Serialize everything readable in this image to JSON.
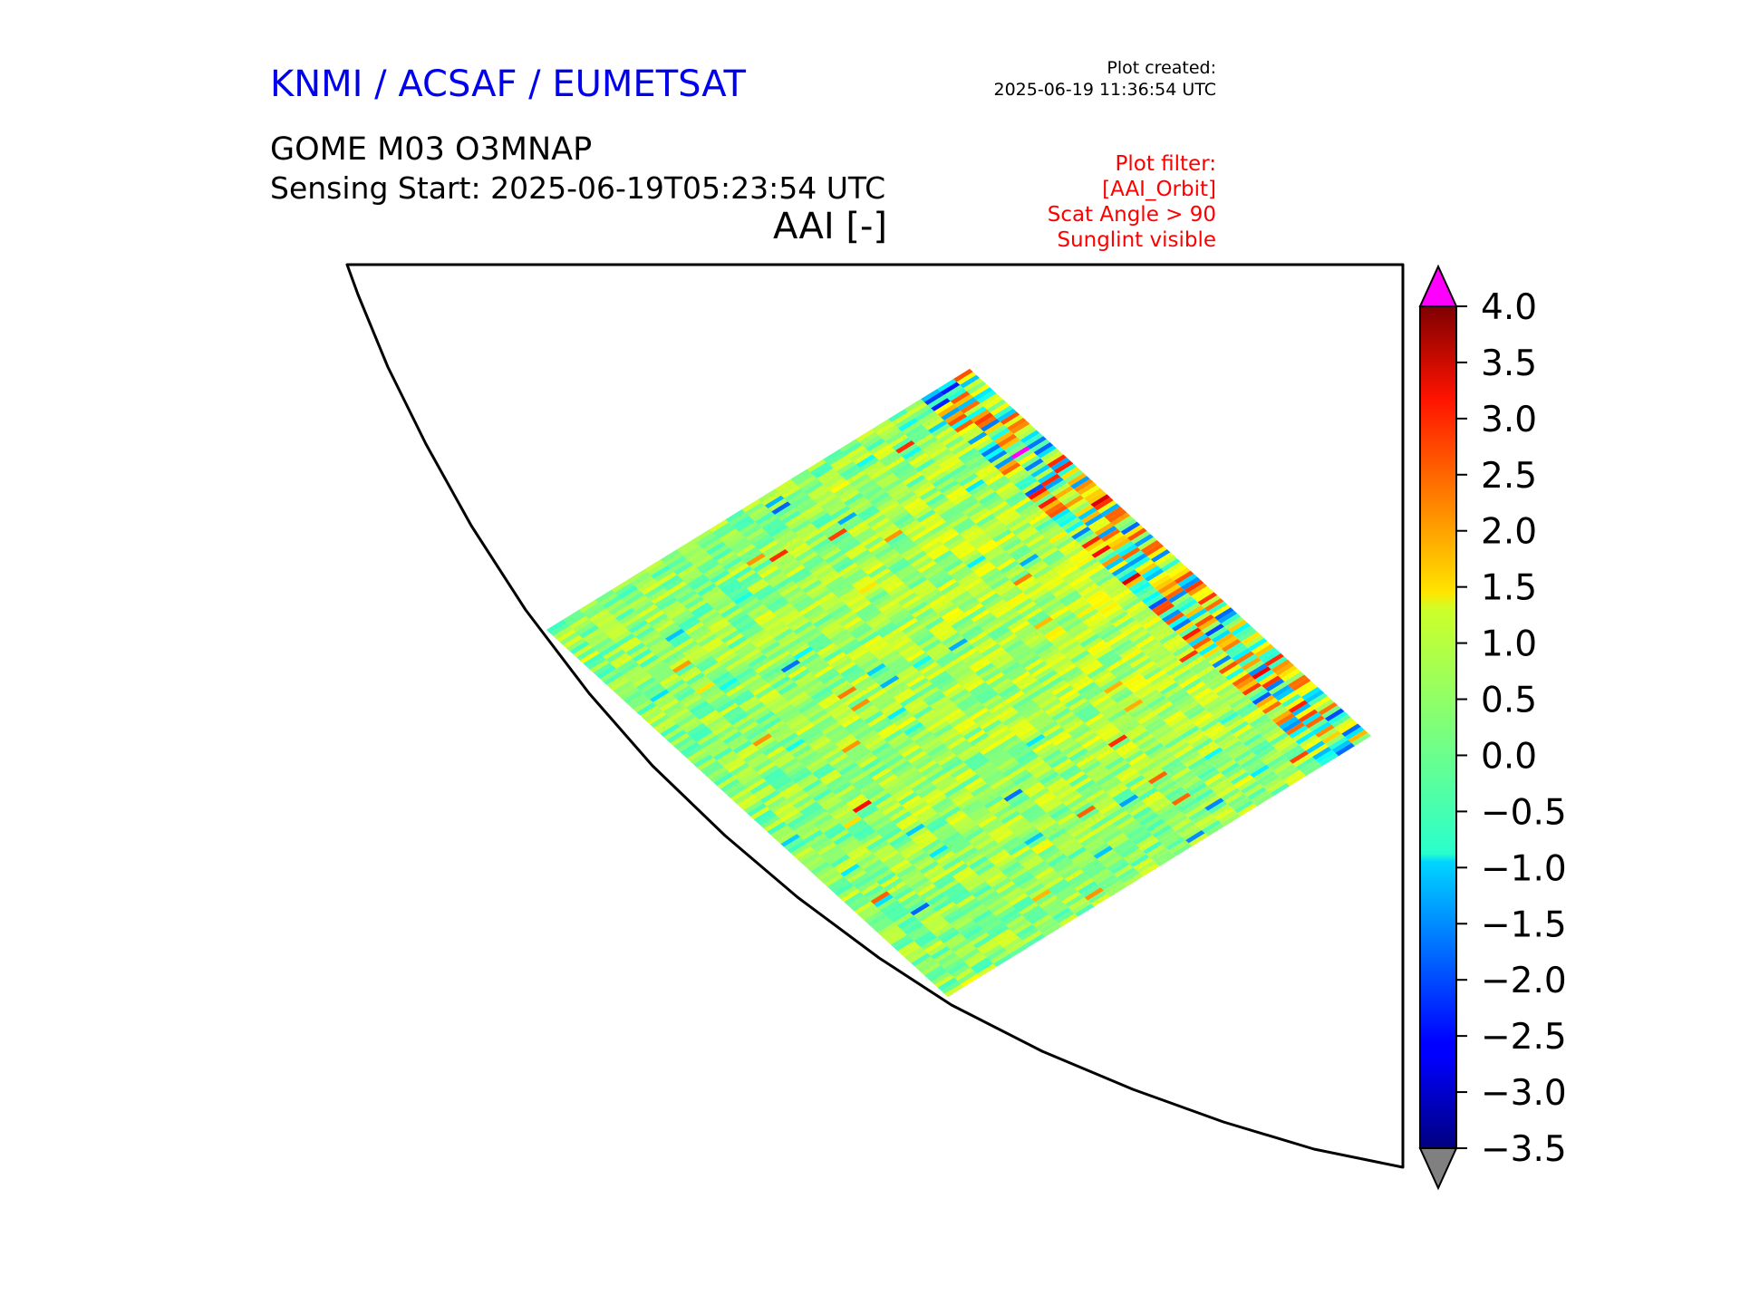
{
  "header": {
    "organisation": "KNMI / ACSAF / EUMETSAT",
    "plot_created_label": "Plot created:",
    "plot_created_value": "2025-06-19 11:36:54 UTC",
    "product": "GOME M03 O3MNAP",
    "sensing_start": "Sensing Start: 2025-06-19T05:23:54 UTC",
    "variable": "AAI [-]",
    "plot_filter": [
      "Plot filter:",
      "[AAI_Orbit]",
      "Scat Angle > 90",
      "Sunglint visible"
    ]
  },
  "colorbar": {
    "min": -3.5,
    "max": 4.0,
    "ticks": [
      "4.0",
      "3.5",
      "3.0",
      "2.5",
      "2.0",
      "1.5",
      "1.0",
      "0.5",
      "0.0",
      "−0.5",
      "−1.0",
      "−1.5",
      "−2.0",
      "−2.5",
      "−3.0",
      "−3.5"
    ],
    "over_color": "#ff00ff",
    "under_color": "#808080",
    "colormap": "jet"
  },
  "colors": {
    "title": "#0000ee",
    "filter_text": "#ff0000"
  }
}
